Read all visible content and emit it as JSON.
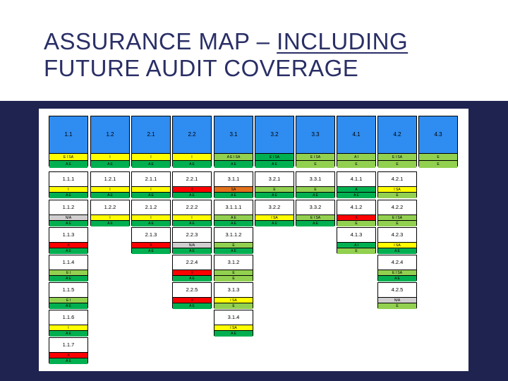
{
  "title": {
    "line1_prefix": "ASSURANCE MAP – ",
    "line1_underlined": "INCLUDING",
    "line2": "FUTURE AUDIT COVERAGE"
  },
  "colors": {
    "yellow": "#ffff00",
    "green": "#00b050",
    "lgreen": "#92d050",
    "red": "#ff0000",
    "orange": "#e2711d",
    "grey": "#d0cece",
    "blue": "#2f8cf0",
    "navy_background": "#1f2350"
  },
  "top_row": [
    {
      "code": "1.1",
      "s1": "E I SA",
      "c1": "yellow",
      "s2": "A E",
      "c2": "green"
    },
    {
      "code": "1.2",
      "s1": "I",
      "c1": "yellow",
      "s2": "A E",
      "c2": "green"
    },
    {
      "code": "2.1",
      "s1": "I",
      "c1": "yellow",
      "s2": "A E",
      "c2": "green"
    },
    {
      "code": "2.2",
      "s1": "I",
      "c1": "yellow",
      "s2": "A E",
      "c2": "green"
    },
    {
      "code": "3.1",
      "s1": "A E I SA",
      "c1": "lgreen",
      "s2": "A E",
      "c2": "green"
    },
    {
      "code": "3.2",
      "s1": "E I SA",
      "c1": "green",
      "s2": "A E",
      "c2": "green"
    },
    {
      "code": "3.3",
      "s1": "E I SA",
      "c1": "lgreen",
      "s2": "E",
      "c2": "lgreen"
    },
    {
      "code": "4.1",
      "s1": "A I",
      "c1": "lgreen",
      "s2": "E",
      "c2": "lgreen"
    },
    {
      "code": "4.2",
      "s1": "E I SA",
      "c1": "lgreen",
      "s2": "E",
      "c2": "lgreen"
    },
    {
      "code": "4.3",
      "s1": "E",
      "c1": "lgreen",
      "s2": "E",
      "c2": "lgreen"
    }
  ],
  "rows": [
    [
      {
        "col": 0,
        "code": "1.1.1",
        "s1": "I",
        "c1": "yellow",
        "s2": "A E",
        "c2": "green"
      },
      {
        "col": 1,
        "code": "1.2.1",
        "s1": "I",
        "c1": "yellow",
        "s2": "A E",
        "c2": "green"
      },
      {
        "col": 2,
        "code": "2.1.1",
        "s1": "I",
        "c1": "yellow",
        "s2": "A E",
        "c2": "green"
      },
      {
        "col": 3,
        "code": "2.2.1",
        "s1": "X",
        "c1": "red",
        "s2": "A E",
        "c2": "green"
      },
      {
        "col": 4,
        "code": "3.1.1",
        "s1": "SA",
        "c1": "orange",
        "s2": "A E",
        "c2": "green"
      },
      {
        "col": 5,
        "code": "3.2.1",
        "s1": "E",
        "c1": "lgreen",
        "s2": "A E",
        "c2": "green"
      },
      {
        "col": 6,
        "code": "3.3.1",
        "s1": "E",
        "c1": "lgreen",
        "s2": "A E",
        "c2": "green"
      },
      {
        "col": 7,
        "code": "4.1.1",
        "s1": "A",
        "c1": "green",
        "s2": "A E",
        "c2": "green"
      },
      {
        "col": 8,
        "code": "4.2.1",
        "s1": "I SA",
        "c1": "yellow",
        "s2": "E",
        "c2": "lgreen"
      }
    ],
    [
      {
        "col": 0,
        "code": "1.1.2",
        "s1": "N/A",
        "c1": "grey",
        "s2": "A E",
        "c2": "green"
      },
      {
        "col": 1,
        "code": "1.2.2",
        "s1": "I",
        "c1": "yellow",
        "s2": "A E",
        "c2": "green"
      },
      {
        "col": 2,
        "code": "2.1.2",
        "s1": "I",
        "c1": "yellow",
        "s2": "A E",
        "c2": "green"
      },
      {
        "col": 3,
        "code": "2.2.2",
        "s1": "I",
        "c1": "yellow",
        "s2": "A E",
        "c2": "green"
      },
      {
        "col": 4,
        "code": "3.1.1.1",
        "s1": "A E",
        "c1": "lgreen",
        "s2": "A E",
        "c2": "green"
      },
      {
        "col": 5,
        "code": "3.2.2",
        "s1": "I SA",
        "c1": "yellow",
        "s2": "A E",
        "c2": "green"
      },
      {
        "col": 6,
        "code": "3.3.2",
        "s1": "E I SA",
        "c1": "lgreen",
        "s2": "A E",
        "c2": "green"
      },
      {
        "col": 7,
        "code": "4.1.2",
        "s1": "X",
        "c1": "red",
        "s2": "E",
        "c2": "lgreen"
      },
      {
        "col": 8,
        "code": "4.2.2",
        "s1": "E I SA",
        "c1": "lgreen",
        "s2": "E",
        "c2": "lgreen"
      }
    ],
    [
      {
        "col": 0,
        "code": "1.1.3",
        "s1": "X",
        "c1": "red",
        "s2": "A E",
        "c2": "green"
      },
      {
        "col": 2,
        "code": "2.1.3",
        "s1": "X",
        "c1": "red",
        "s2": "A E",
        "c2": "green"
      },
      {
        "col": 3,
        "code": "2.2.3",
        "s1": "N/A",
        "c1": "grey",
        "s2": "A E",
        "c2": "green"
      },
      {
        "col": 4,
        "code": "3.1.1.2",
        "s1": "E",
        "c1": "lgreen",
        "s2": "A E",
        "c2": "green"
      },
      {
        "col": 7,
        "code": "4.1.3",
        "s1": "A I",
        "c1": "green",
        "s2": "E",
        "c2": "lgreen"
      },
      {
        "col": 8,
        "code": "4.2.3",
        "s1": "I SA",
        "c1": "yellow",
        "s2": "A E",
        "c2": "green"
      }
    ],
    [
      {
        "col": 0,
        "code": "1.1.4",
        "s1": "E I",
        "c1": "lgreen",
        "s2": "A E",
        "c2": "green"
      },
      {
        "col": 3,
        "code": "2.2.4",
        "s1": "X",
        "c1": "red",
        "s2": "A E",
        "c2": "green"
      },
      {
        "col": 4,
        "code": "3.1.2",
        "s1": "E",
        "c1": "lgreen",
        "s2": "E",
        "c2": "lgreen"
      },
      {
        "col": 8,
        "code": "4.2.4",
        "s1": "E I SA",
        "c1": "lgreen",
        "s2": "A E",
        "c2": "green"
      }
    ],
    [
      {
        "col": 0,
        "code": "1.1.5",
        "s1": "E I",
        "c1": "lgreen",
        "s2": "A E",
        "c2": "green"
      },
      {
        "col": 3,
        "code": "2.2.5",
        "s1": "X",
        "c1": "red",
        "s2": "A E",
        "c2": "green"
      },
      {
        "col": 4,
        "code": "3.1.3",
        "s1": "I SA",
        "c1": "yellow",
        "s2": "E",
        "c2": "lgreen"
      },
      {
        "col": 8,
        "code": "4.2.5",
        "s1": "N/A",
        "c1": "grey",
        "s2": "E",
        "c2": "lgreen"
      }
    ],
    [
      {
        "col": 0,
        "code": "1.1.6",
        "s1": "I",
        "c1": "yellow",
        "s2": "A E",
        "c2": "green"
      },
      {
        "col": 4,
        "code": "3.1.4",
        "s1": "I SA",
        "c1": "yellow",
        "s2": "A E",
        "c2": "green"
      }
    ],
    [
      {
        "col": 0,
        "code": "1.1.7",
        "s1": "X",
        "c1": "red",
        "s2": "A E",
        "c2": "green"
      }
    ]
  ]
}
